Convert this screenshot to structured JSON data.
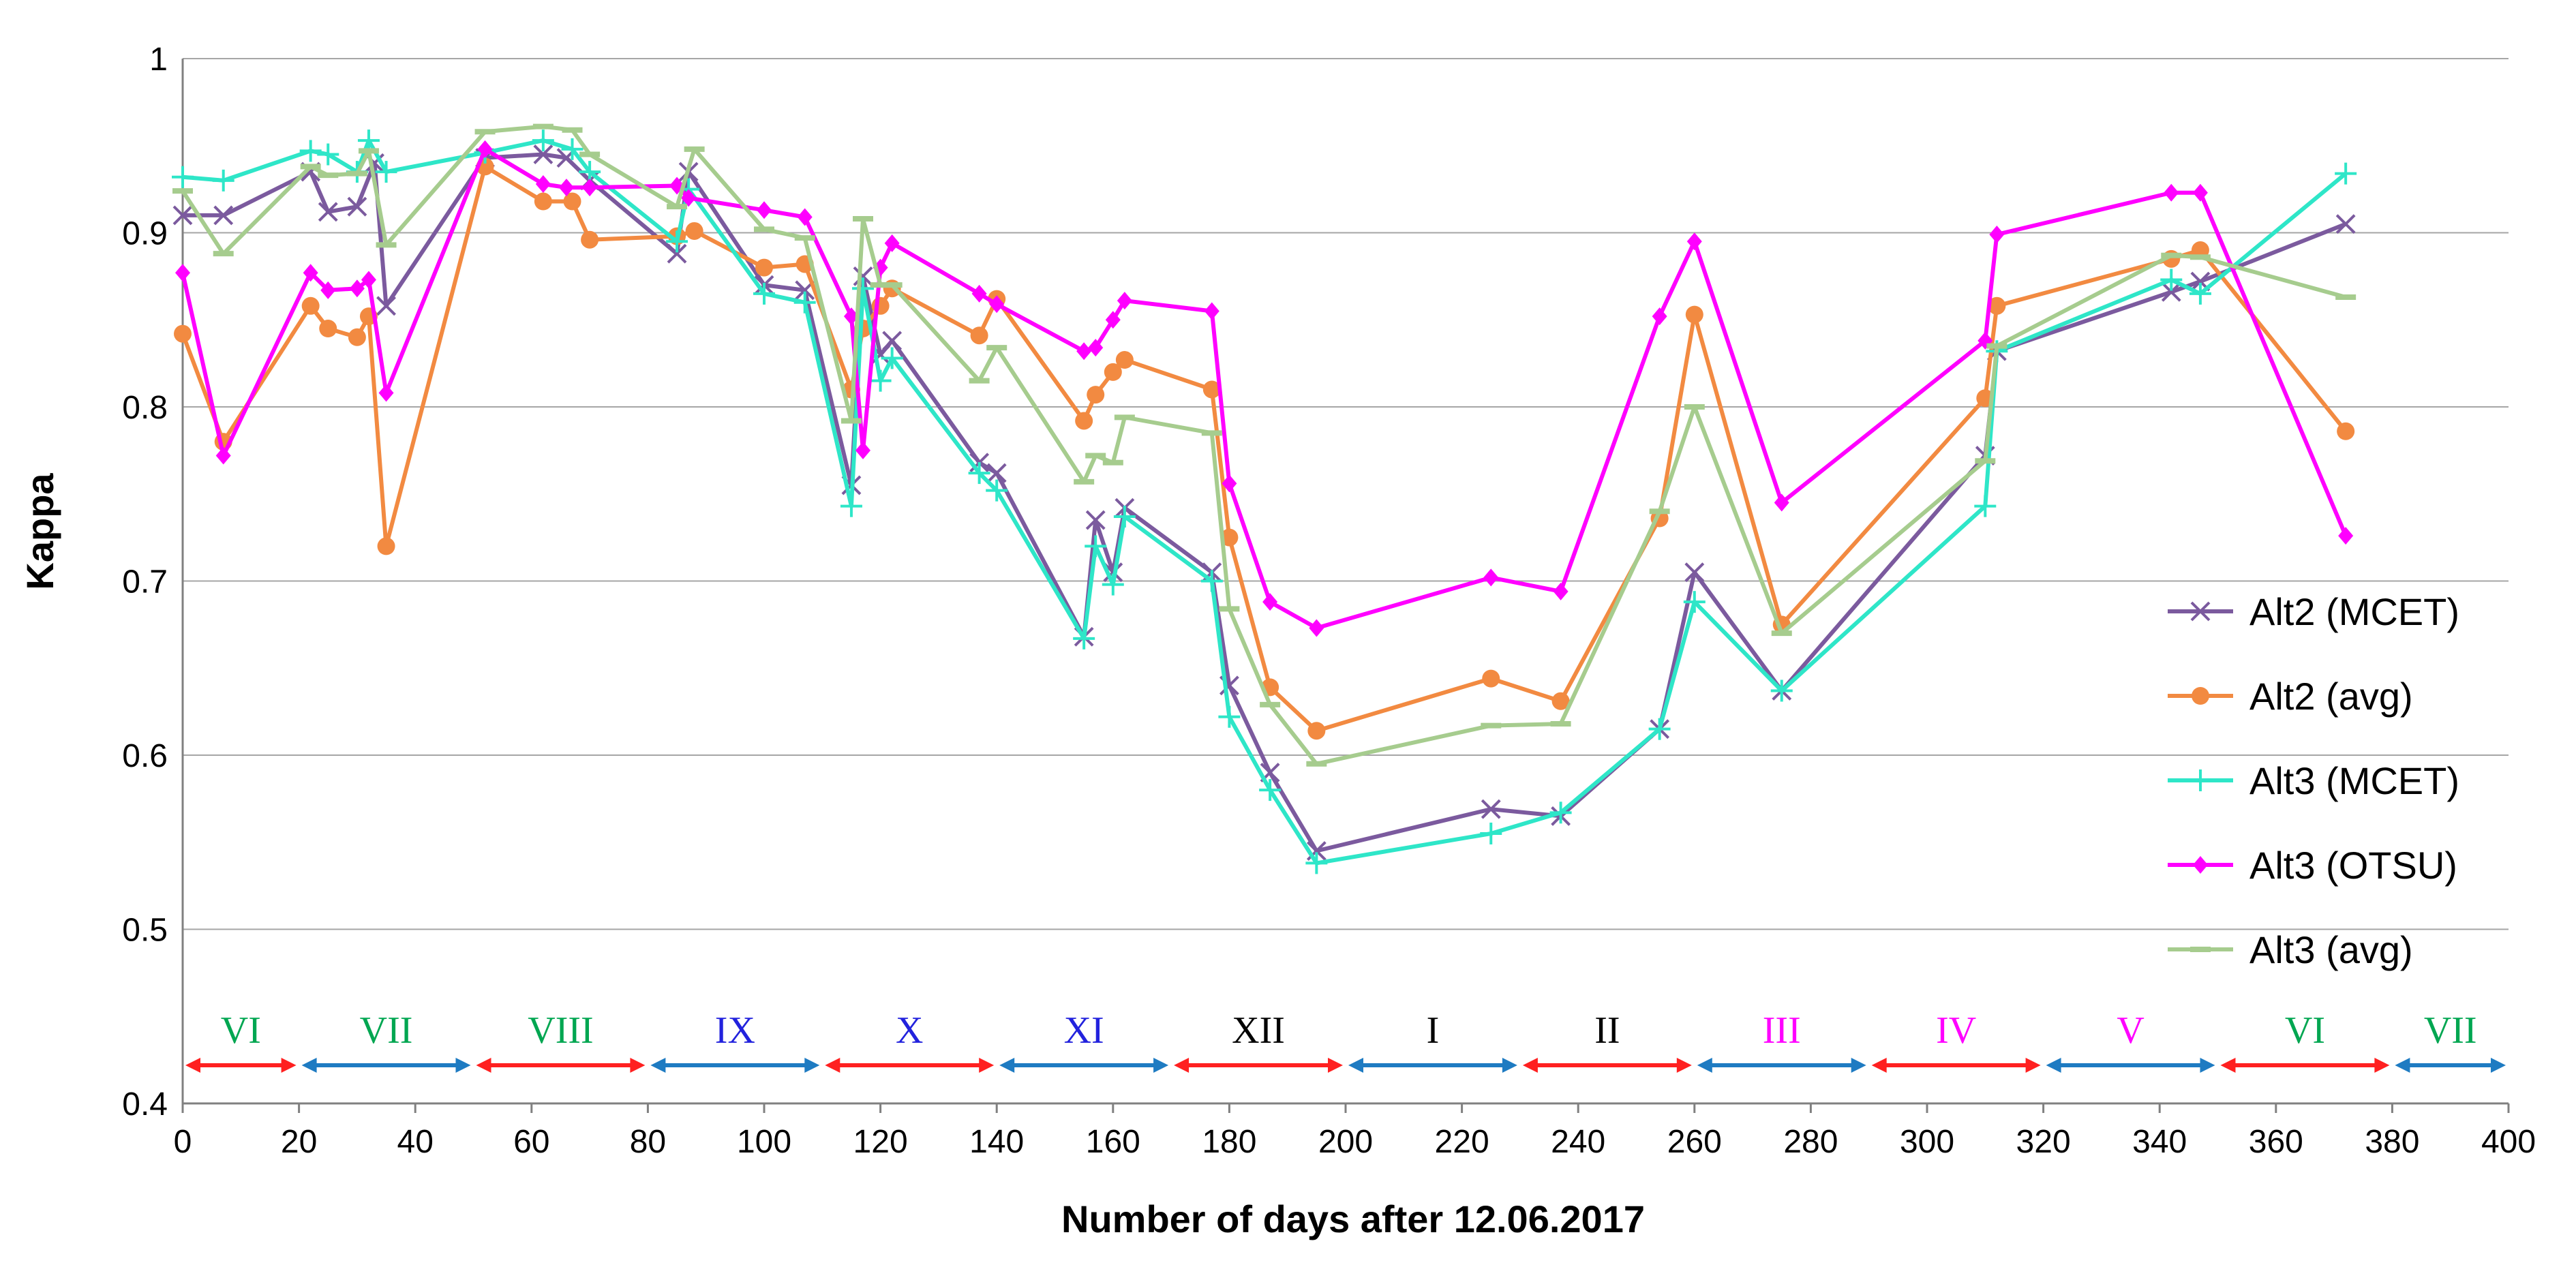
{
  "chart_data": {
    "type": "line",
    "title": "",
    "xlabel": "Number of days after 12.06.2017",
    "ylabel": "Kappa",
    "xlim": [
      0,
      400
    ],
    "ylim": [
      0.4,
      1.0
    ],
    "x_ticks": [
      0,
      20,
      40,
      60,
      80,
      100,
      120,
      140,
      160,
      180,
      200,
      220,
      240,
      260,
      280,
      300,
      320,
      340,
      360,
      380,
      400
    ],
    "y_ticks": [
      0.4,
      0.5,
      0.6,
      0.7,
      0.8,
      0.9,
      1.0
    ],
    "y_tick_labels": [
      "0.4",
      "0.5",
      "0.6",
      "0.7",
      "0.8",
      "0.9",
      "1"
    ],
    "grid": "horizontal",
    "legend_position": "right",
    "series": [
      {
        "name": "Alt2 (MCET)",
        "color": "#7B5A9E",
        "marker": "x",
        "x": [
          0,
          7,
          22,
          25,
          30,
          33,
          35,
          52,
          62,
          66,
          70,
          85,
          87,
          100,
          107,
          115,
          117,
          120,
          122,
          137,
          140,
          155,
          157,
          160,
          162,
          177,
          180,
          187,
          195,
          225,
          237,
          254,
          260,
          275,
          310,
          312,
          342,
          347,
          372
        ],
        "values": [
          0.91,
          0.91,
          0.935,
          0.912,
          0.915,
          0.94,
          0.858,
          0.943,
          0.945,
          0.943,
          0.93,
          0.888,
          0.935,
          0.87,
          0.867,
          0.755,
          0.875,
          0.83,
          0.838,
          0.768,
          0.762,
          0.668,
          0.735,
          0.705,
          0.742,
          0.705,
          0.64,
          0.59,
          0.545,
          0.569,
          0.565,
          0.615,
          0.705,
          0.637,
          0.772,
          0.832,
          0.866,
          0.872,
          0.905
        ]
      },
      {
        "name": "Alt2 (avg)",
        "color": "#F28A41",
        "marker": "circle",
        "x": [
          0,
          7,
          22,
          25,
          30,
          32,
          35,
          52,
          62,
          67,
          70,
          85,
          88,
          100,
          107,
          115,
          117,
          120,
          122,
          137,
          140,
          155,
          157,
          160,
          162,
          177,
          180,
          187,
          195,
          225,
          237,
          254,
          260,
          275,
          310,
          312,
          342,
          347,
          372
        ],
        "values": [
          0.842,
          0.78,
          0.858,
          0.845,
          0.84,
          0.852,
          0.72,
          0.938,
          0.918,
          0.918,
          0.896,
          0.898,
          0.901,
          0.88,
          0.882,
          0.81,
          0.845,
          0.858,
          0.868,
          0.841,
          0.862,
          0.792,
          0.807,
          0.82,
          0.827,
          0.81,
          0.725,
          0.639,
          0.614,
          0.644,
          0.631,
          0.736,
          0.853,
          0.675,
          0.805,
          0.858,
          0.885,
          0.89,
          0.786
        ]
      },
      {
        "name": "Alt3 (MCET)",
        "color": "#2EE6C8",
        "marker": "plus",
        "x": [
          0,
          7,
          22,
          25,
          30,
          32,
          35,
          52,
          62,
          67,
          70,
          85,
          87,
          100,
          107,
          115,
          117,
          120,
          122,
          137,
          140,
          155,
          157,
          160,
          162,
          177,
          180,
          187,
          195,
          225,
          237,
          254,
          260,
          275,
          310,
          312,
          342,
          347,
          372
        ],
        "values": [
          0.932,
          0.93,
          0.947,
          0.945,
          0.935,
          0.953,
          0.935,
          0.946,
          0.953,
          0.948,
          0.935,
          0.895,
          0.925,
          0.865,
          0.86,
          0.743,
          0.868,
          0.815,
          0.828,
          0.762,
          0.752,
          0.667,
          0.72,
          0.698,
          0.737,
          0.7,
          0.622,
          0.58,
          0.538,
          0.555,
          0.567,
          0.615,
          0.688,
          0.637,
          0.743,
          0.832,
          0.873,
          0.865,
          0.934
        ]
      },
      {
        "name": "Alt3 (OTSU)",
        "color": "#FF00FF",
        "marker": "diamond",
        "x": [
          0,
          7,
          22,
          25,
          30,
          32,
          35,
          52,
          62,
          66,
          70,
          85,
          87,
          100,
          107,
          115,
          117,
          120,
          122,
          137,
          140,
          155,
          157,
          160,
          162,
          177,
          180,
          187,
          195,
          225,
          237,
          254,
          260,
          275,
          310,
          312,
          342,
          347,
          372
        ],
        "values": [
          0.877,
          0.772,
          0.877,
          0.867,
          0.868,
          0.873,
          0.808,
          0.948,
          0.928,
          0.926,
          0.926,
          0.927,
          0.92,
          0.913,
          0.909,
          0.852,
          0.775,
          0.88,
          0.894,
          0.865,
          0.859,
          0.832,
          0.834,
          0.85,
          0.861,
          0.855,
          0.756,
          0.688,
          0.673,
          0.702,
          0.694,
          0.852,
          0.895,
          0.745,
          0.838,
          0.899,
          0.923,
          0.923,
          0.726
        ]
      },
      {
        "name": "Alt3 (avg)",
        "color": "#A6CC8E",
        "marker": "dash",
        "x": [
          0,
          7,
          22,
          25,
          30,
          32,
          35,
          52,
          62,
          67,
          70,
          85,
          88,
          100,
          107,
          115,
          117,
          120,
          122,
          137,
          140,
          155,
          157,
          160,
          162,
          177,
          180,
          187,
          195,
          225,
          237,
          254,
          260,
          275,
          310,
          312,
          342,
          347,
          372
        ],
        "values": [
          0.924,
          0.888,
          0.938,
          0.933,
          0.934,
          0.947,
          0.893,
          0.958,
          0.961,
          0.959,
          0.945,
          0.915,
          0.948,
          0.902,
          0.897,
          0.792,
          0.908,
          0.87,
          0.87,
          0.815,
          0.834,
          0.757,
          0.772,
          0.768,
          0.794,
          0.785,
          0.684,
          0.629,
          0.595,
          0.617,
          0.618,
          0.74,
          0.8,
          0.67,
          0.769,
          0.835,
          0.887,
          0.886,
          0.863
        ]
      }
    ],
    "month_bands": [
      {
        "label": "VI",
        "start": 0,
        "end": 20,
        "text_color": "#00A651",
        "arrow_color": "#FF2020"
      },
      {
        "label": "VII",
        "start": 20,
        "end": 50,
        "text_color": "#00A651",
        "arrow_color": "#1E7BC2"
      },
      {
        "label": "VIII",
        "start": 50,
        "end": 80,
        "text_color": "#00A651",
        "arrow_color": "#FF2020"
      },
      {
        "label": "IX",
        "start": 80,
        "end": 110,
        "text_color": "#2222DD",
        "arrow_color": "#1E7BC2"
      },
      {
        "label": "X",
        "start": 110,
        "end": 140,
        "text_color": "#2222DD",
        "arrow_color": "#FF2020"
      },
      {
        "label": "XI",
        "start": 140,
        "end": 170,
        "text_color": "#2222DD",
        "arrow_color": "#1E7BC2"
      },
      {
        "label": "XII",
        "start": 170,
        "end": 200,
        "text_color": "#000000",
        "arrow_color": "#FF2020"
      },
      {
        "label": "I",
        "start": 200,
        "end": 230,
        "text_color": "#000000",
        "arrow_color": "#1E7BC2"
      },
      {
        "label": "II",
        "start": 230,
        "end": 260,
        "text_color": "#000000",
        "arrow_color": "#FF2020"
      },
      {
        "label": "III",
        "start": 260,
        "end": 290,
        "text_color": "#FF00FF",
        "arrow_color": "#1E7BC2"
      },
      {
        "label": "IV",
        "start": 290,
        "end": 320,
        "text_color": "#FF00FF",
        "arrow_color": "#FF2020"
      },
      {
        "label": "V",
        "start": 320,
        "end": 350,
        "text_color": "#FF00FF",
        "arrow_color": "#1E7BC2"
      },
      {
        "label": "VI",
        "start": 350,
        "end": 380,
        "text_color": "#00A651",
        "arrow_color": "#FF2020"
      },
      {
        "label": "VII",
        "start": 380,
        "end": 400,
        "text_color": "#00A651",
        "arrow_color": "#1E7BC2"
      }
    ]
  }
}
